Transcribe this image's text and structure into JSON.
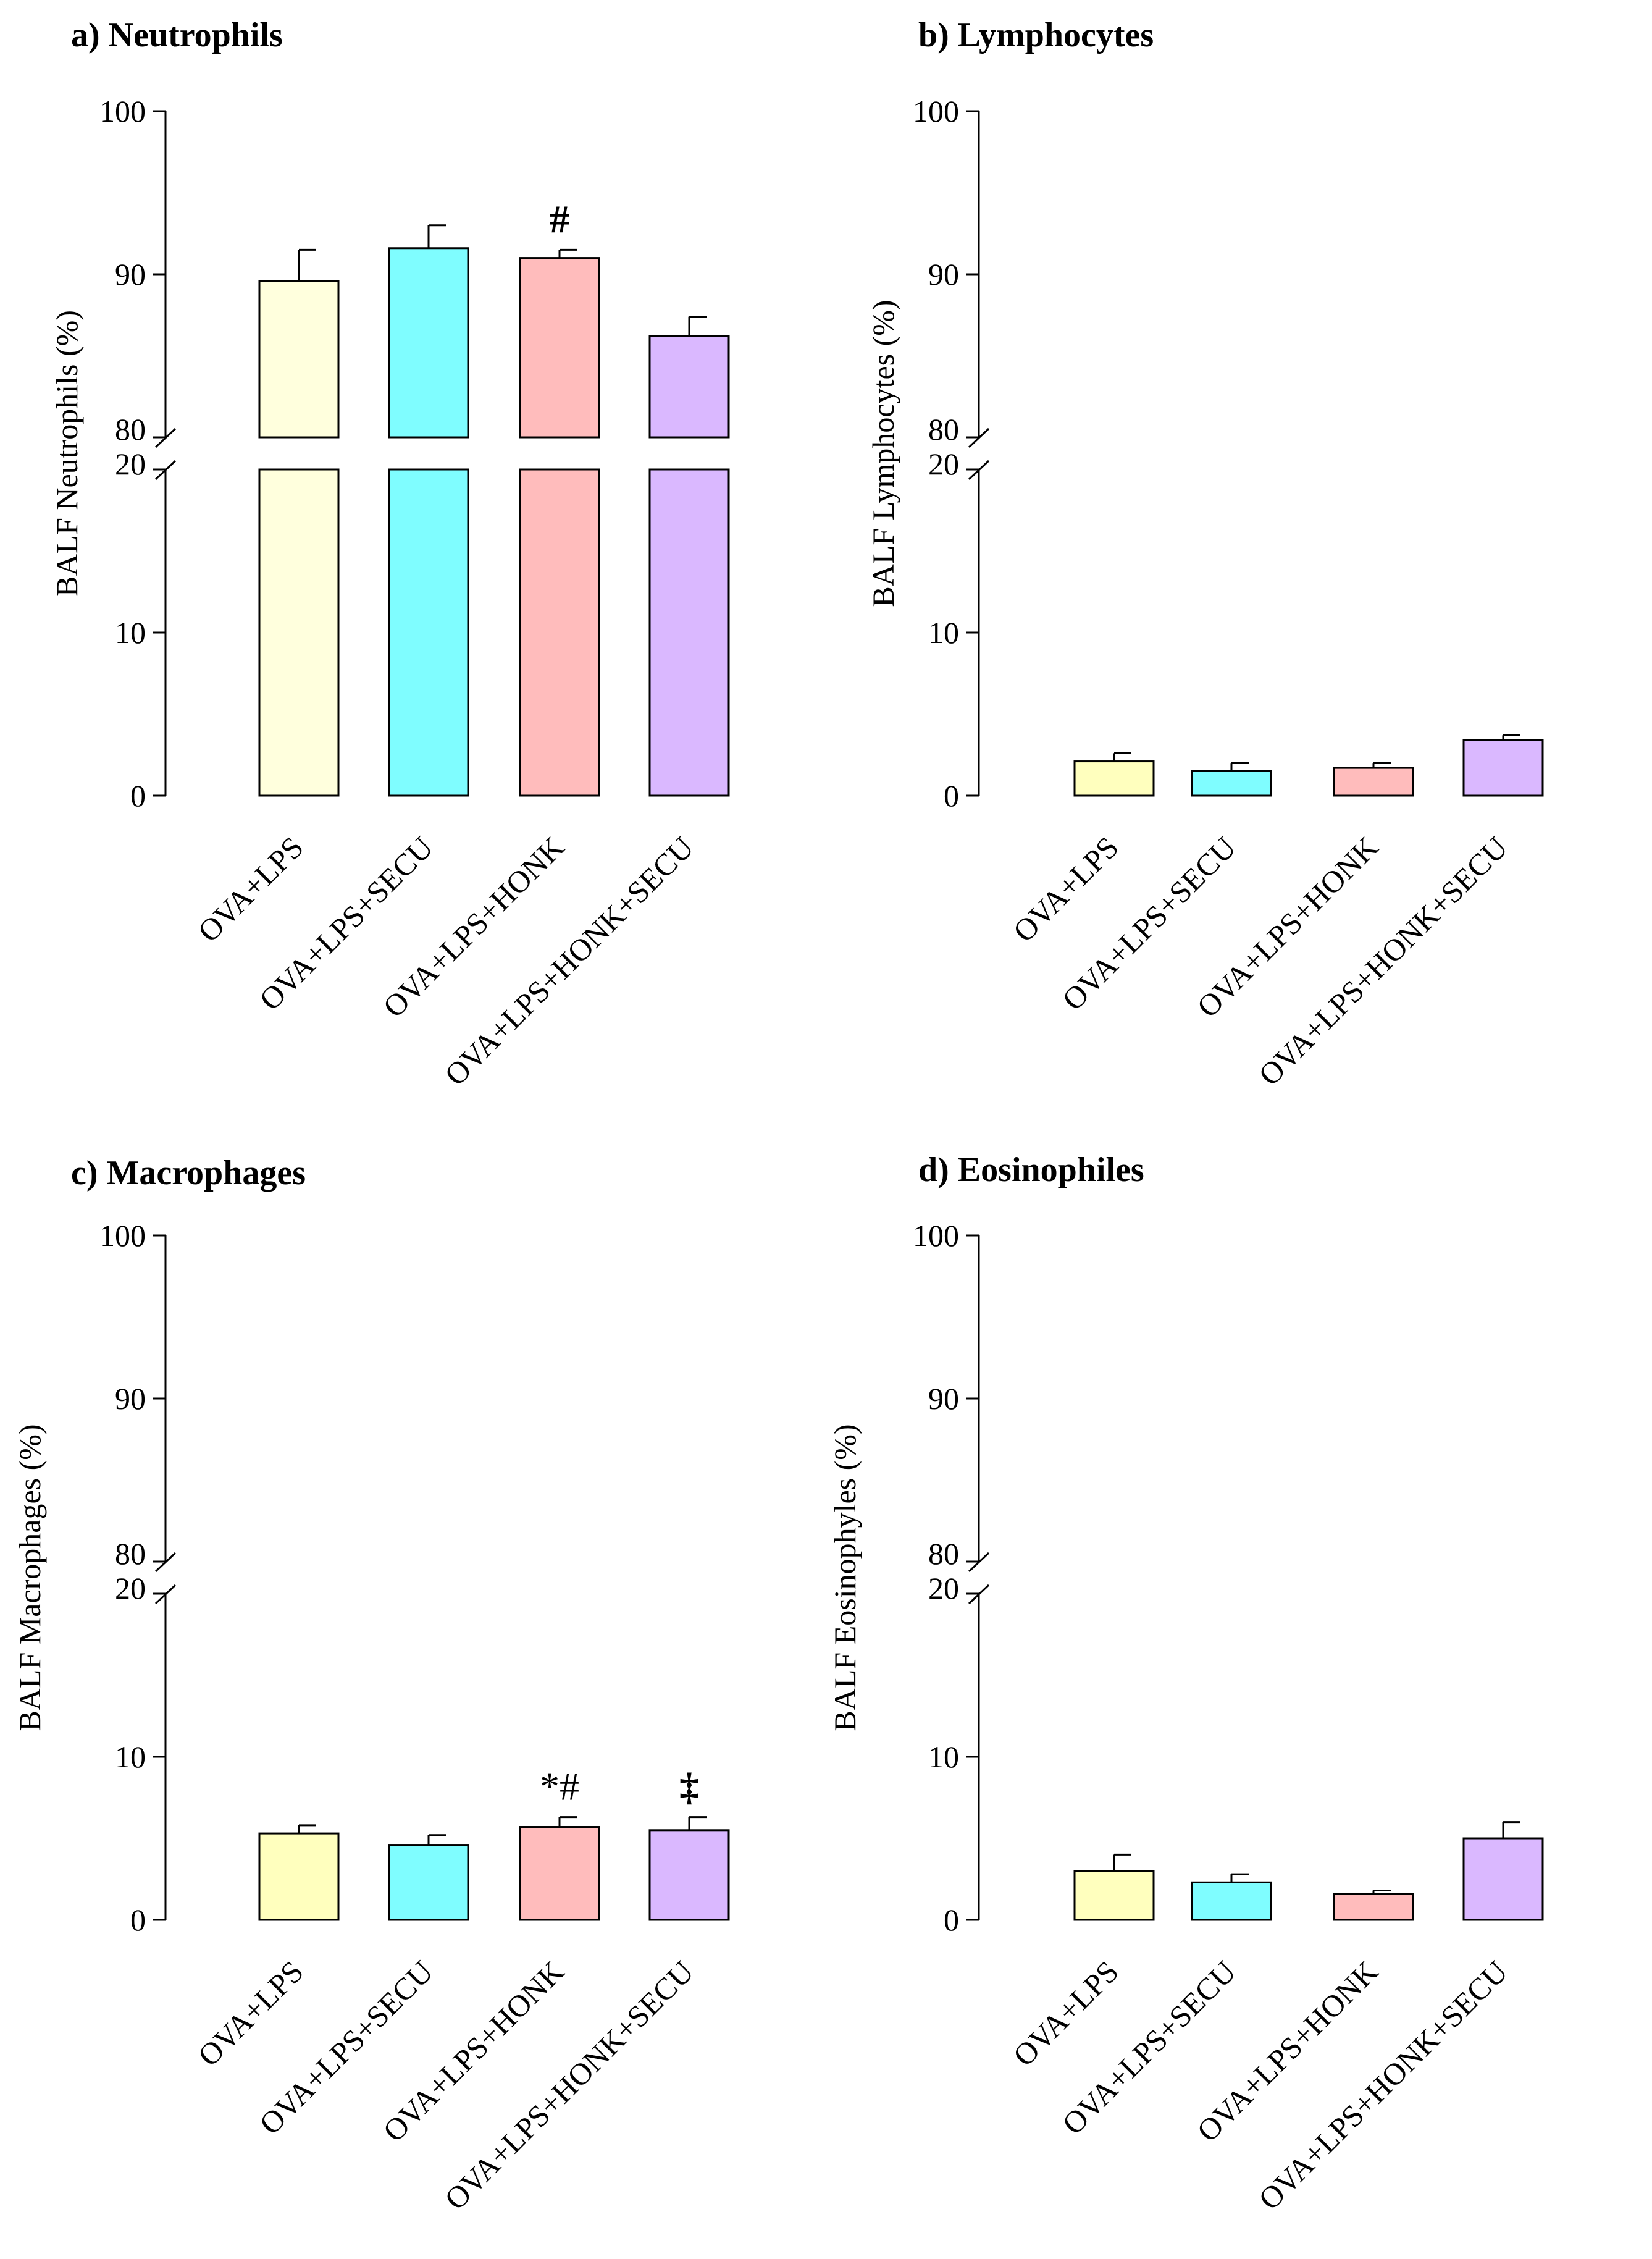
{
  "chart_data": [
    {
      "type": "bar",
      "title": "a) Neutrophils",
      "ylabel": "BALF Neutrophils (%)",
      "xlabel": "",
      "categories": [
        "OVA+LPS",
        "OVA+LPS+SECU",
        "OVA+LPS+HONK",
        "OVA+LPS+HONK+SECU"
      ],
      "values": [
        89.6,
        91.6,
        91.0,
        86.2
      ],
      "errors": [
        1.9,
        1.4,
        0.5,
        1.2
      ],
      "annotations": [
        "",
        "",
        "#",
        ""
      ],
      "annotation_styles": [
        "",
        "",
        "bold",
        ""
      ],
      "ylim": [
        0,
        100
      ],
      "y_break": [
        20,
        80
      ],
      "yticks": [
        "0",
        "10",
        "20",
        "80",
        "90",
        "100"
      ],
      "grid": false,
      "colors": [
        "#ffffdd",
        "#7ffdff",
        "#ffbcbc",
        "#dab8ff"
      ]
    },
    {
      "type": "bar",
      "title": "b) Lymphocytes",
      "ylabel": "BALF Lymphocytes (%)",
      "xlabel": "",
      "categories": [
        "OVA+LPS",
        "OVA+LPS+SECU",
        "OVA+LPS+HONK",
        "OVA+LPS+HONK+SECU"
      ],
      "values": [
        2.1,
        1.5,
        1.7,
        3.4
      ],
      "errors": [
        0.5,
        0.5,
        0.3,
        0.3
      ],
      "annotations": [
        "",
        "",
        "",
        ""
      ],
      "annotation_styles": [
        "",
        "",
        "",
        ""
      ],
      "ylim": [
        0,
        100
      ],
      "y_break": [
        20,
        80
      ],
      "yticks": [
        "0",
        "10",
        "20",
        "80",
        "90",
        "100"
      ],
      "grid": false,
      "colors": [
        "#ffffbe",
        "#7ffdff",
        "#ffbcbc",
        "#dab8ff"
      ]
    },
    {
      "type": "bar",
      "title": "c) Macrophages",
      "ylabel": "BALF Macrophages (%)",
      "xlabel": "",
      "categories": [
        "OVA+LPS",
        "OVA+LPS+SECU",
        "OVA+LPS+HONK",
        "OVA+LPS+HONK+SECU"
      ],
      "values": [
        5.3,
        4.6,
        5.7,
        5.5
      ],
      "errors": [
        0.5,
        0.6,
        0.6,
        0.8
      ],
      "annotations": [
        "",
        "",
        "*#",
        "‡"
      ],
      "annotation_styles": [
        "",
        "",
        "normal",
        "bold"
      ],
      "ylim": [
        0,
        100
      ],
      "y_break": [
        20,
        80
      ],
      "yticks": [
        "0",
        "10",
        "20",
        "80",
        "90",
        "100"
      ],
      "grid": false,
      "colors": [
        "#ffffbe",
        "#7ffdff",
        "#ffbcbc",
        "#dab8ff"
      ]
    },
    {
      "type": "bar",
      "title": "d) Eosinophiles",
      "ylabel": "BALF Eosinophyles (%)",
      "xlabel": "",
      "categories": [
        "OVA+LPS",
        "OVA+LPS+SECU",
        "OVA+LPS+HONK",
        "OVA+LPS+HONK+SECU"
      ],
      "values": [
        3.0,
        2.3,
        1.6,
        5.0
      ],
      "errors": [
        1.0,
        0.5,
        0.2,
        1.0
      ],
      "annotations": [
        "",
        "",
        "",
        ""
      ],
      "annotation_styles": [
        "",
        "",
        "",
        ""
      ],
      "ylim": [
        0,
        100
      ],
      "y_break": [
        20,
        80
      ],
      "yticks": [
        "0",
        "10",
        "20",
        "80",
        "90",
        "100"
      ],
      "grid": false,
      "colors": [
        "#ffffbe",
        "#7ffdff",
        "#ffbcbc",
        "#dab8ff"
      ]
    }
  ]
}
